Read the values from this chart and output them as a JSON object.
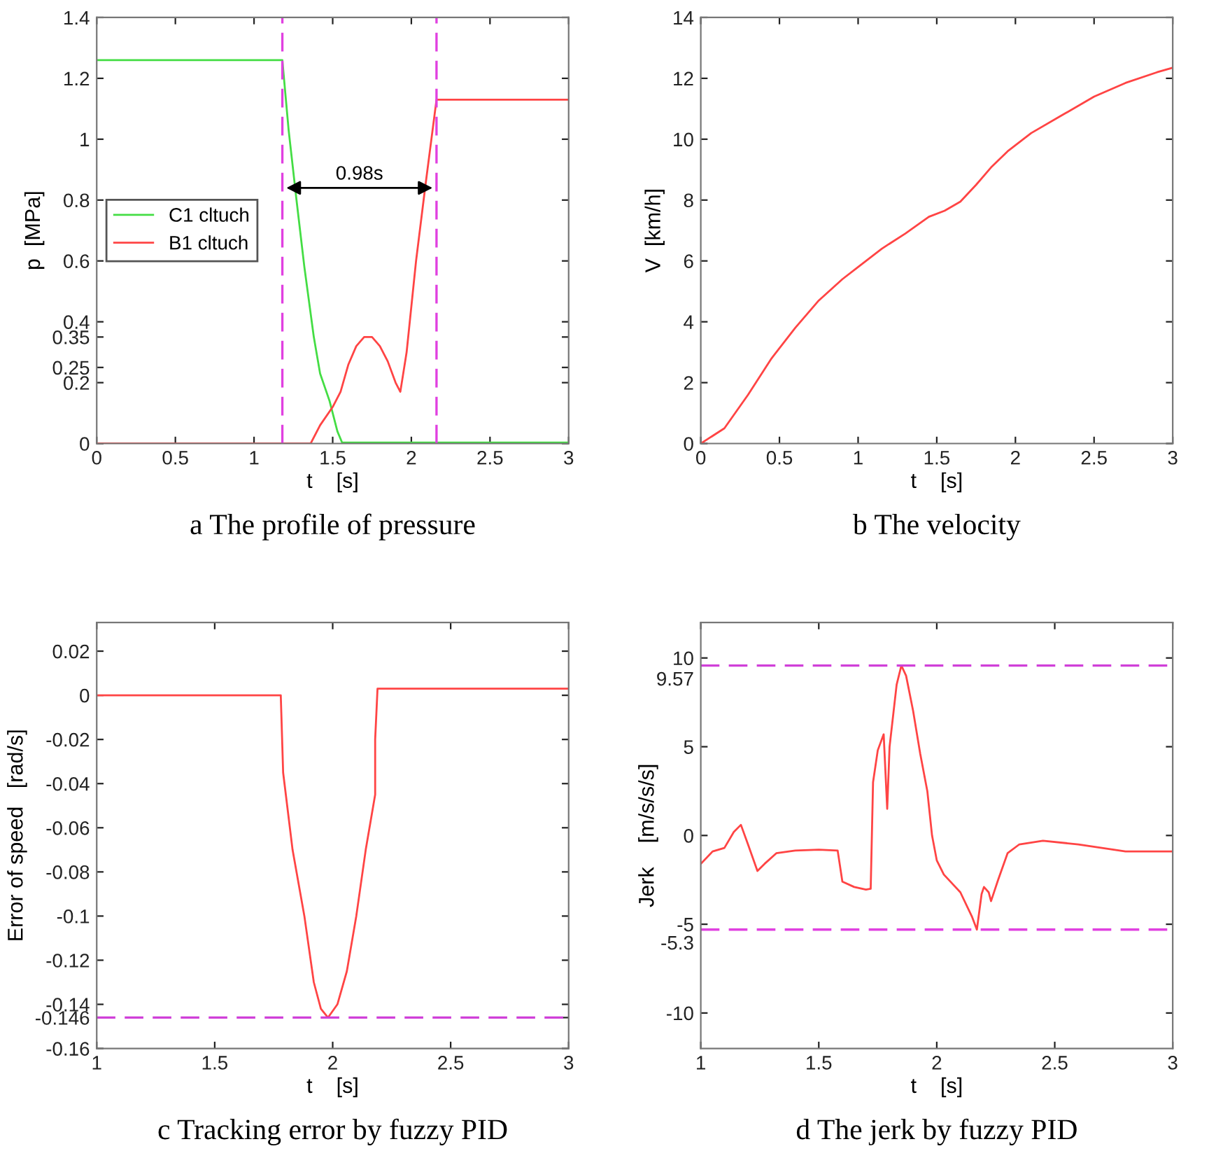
{
  "chart_data": [
    {
      "type": "line",
      "title": "a The profile of pressure",
      "xlabel": "t    [s]",
      "ylabel": "p  [MPa]",
      "xlim": [
        0,
        3
      ],
      "xticks": [
        0,
        0.5,
        1,
        1.5,
        2,
        2.5,
        3
      ],
      "ylim": [
        0,
        1.4
      ],
      "yticks": [
        0,
        0.2,
        0.25,
        0.35,
        0.4,
        0.6,
        0.8,
        1,
        1.2,
        1.4
      ],
      "legend": "left",
      "grid": false,
      "series": [
        {
          "name": "C1 cltuch",
          "color": "#44dd44",
          "x": [
            0,
            1.18,
            1.22,
            1.27,
            1.32,
            1.38,
            1.42,
            1.48,
            1.53,
            1.56,
            3
          ],
          "values": [
            1.26,
            1.26,
            1.03,
            0.8,
            0.58,
            0.35,
            0.23,
            0.14,
            0.04,
            0.003,
            0.003
          ]
        },
        {
          "name": "B1 cltuch",
          "color": "#ff4444",
          "x": [
            0,
            1.36,
            1.42,
            1.5,
            1.55,
            1.6,
            1.65,
            1.7,
            1.75,
            1.8,
            1.85,
            1.9,
            1.93,
            1.97,
            2.03,
            2.09,
            2.16,
            3
          ],
          "values": [
            0,
            0,
            0.06,
            0.12,
            0.17,
            0.26,
            0.32,
            0.35,
            0.35,
            0.32,
            0.27,
            0.2,
            0.17,
            0.3,
            0.6,
            0.85,
            1.13,
            1.13
          ]
        }
      ],
      "ref_lines": [
        {
          "axis": "x",
          "value": 1.18,
          "color": "#e040e0",
          "line_style": "dashed"
        },
        {
          "axis": "x",
          "value": 2.16,
          "color": "#e040e0",
          "line_style": "dashed"
        }
      ],
      "annotations": [
        "0.98s"
      ]
    },
    {
      "type": "line",
      "title": "b The velocity",
      "xlabel": "t    [s]",
      "ylabel": "V  [km/h]",
      "xlim": [
        0,
        3
      ],
      "xticks": [
        0,
        0.5,
        1,
        1.5,
        2,
        2.5,
        3
      ],
      "ylim": [
        0,
        14
      ],
      "yticks": [
        0,
        2,
        4,
        6,
        8,
        10,
        12,
        14
      ],
      "grid": false,
      "series": [
        {
          "color": "#ff4444",
          "x": [
            0,
            0.15,
            0.3,
            0.45,
            0.6,
            0.75,
            0.9,
            1.0,
            1.15,
            1.3,
            1.45,
            1.55,
            1.65,
            1.75,
            1.85,
            1.95,
            2.1,
            2.3,
            2.5,
            2.7,
            2.9,
            3.0
          ],
          "values": [
            0,
            0.5,
            1.6,
            2.8,
            3.8,
            4.7,
            5.4,
            5.8,
            6.4,
            6.9,
            7.45,
            7.65,
            7.95,
            8.5,
            9.1,
            9.6,
            10.2,
            10.8,
            11.4,
            11.85,
            12.2,
            12.35
          ]
        }
      ]
    },
    {
      "type": "line",
      "title": "c Tracking error by fuzzy PID",
      "xlabel": "t    [s]",
      "ylabel": "Error of speed   [rad/s]",
      "xlim": [
        1,
        3
      ],
      "xticks": [
        1,
        1.5,
        2,
        2.5,
        3
      ],
      "ylim": [
        -0.16,
        0.033
      ],
      "yticks": [
        -0.16,
        -0.146,
        -0.14,
        -0.12,
        -0.1,
        -0.08,
        -0.06,
        -0.04,
        -0.02,
        0,
        0.02
      ],
      "grid": false,
      "series": [
        {
          "color": "#ff4444",
          "x": [
            1,
            1.78,
            1.79,
            1.83,
            1.88,
            1.92,
            1.95,
            1.98,
            2.02,
            2.06,
            2.1,
            2.14,
            2.18,
            2.18,
            2.19,
            3
          ],
          "values": [
            0,
            0,
            -0.035,
            -0.07,
            -0.1,
            -0.13,
            -0.142,
            -0.146,
            -0.14,
            -0.125,
            -0.1,
            -0.07,
            -0.045,
            -0.02,
            0.003,
            0.003
          ]
        }
      ],
      "ref_lines": [
        {
          "axis": "y",
          "value": -0.146,
          "color": "#d040d8",
          "line_style": "dashed"
        }
      ]
    },
    {
      "type": "line",
      "title": "d The jerk by fuzzy PID",
      "xlabel": "t    [s]",
      "ylabel": "Jerk    [m/s/s/s]",
      "xlim": [
        1,
        3
      ],
      "xticks": [
        1,
        1.5,
        2,
        2.5,
        3
      ],
      "ylim": [
        -12,
        12
      ],
      "yticks": [
        -10,
        -5,
        0,
        5,
        10
      ],
      "grid": false,
      "series": [
        {
          "color": "#ff4444",
          "x": [
            1,
            1.05,
            1.1,
            1.14,
            1.17,
            1.2,
            1.24,
            1.27,
            1.32,
            1.4,
            1.5,
            1.58,
            1.6,
            1.65,
            1.7,
            1.72,
            1.73,
            1.75,
            1.775,
            1.79,
            1.8,
            1.83,
            1.85,
            1.87,
            1.9,
            1.93,
            1.96,
            1.98,
            2.0,
            2.03,
            2.1,
            2.15,
            2.17,
            2.19,
            2.2,
            2.22,
            2.23,
            2.26,
            2.3,
            2.35,
            2.45,
            2.6,
            2.8,
            3
          ],
          "values": [
            -1.6,
            -0.9,
            -0.7,
            0.2,
            0.6,
            -0.5,
            -2.0,
            -1.6,
            -1.0,
            -0.85,
            -0.8,
            -0.85,
            -2.6,
            -2.9,
            -3.05,
            -3.0,
            3.0,
            4.8,
            5.7,
            1.5,
            5.0,
            8.5,
            9.57,
            9.0,
            7.0,
            4.6,
            2.5,
            0.0,
            -1.4,
            -2.2,
            -3.2,
            -4.6,
            -5.3,
            -3.3,
            -2.9,
            -3.2,
            -3.7,
            -2.5,
            -1.0,
            -0.5,
            -0.3,
            -0.5,
            -0.9,
            -0.9
          ]
        }
      ],
      "ref_lines": [
        {
          "axis": "y",
          "value": 9.57,
          "label": "9.57",
          "color": "#d040d8",
          "line_style": "dashed"
        },
        {
          "axis": "y",
          "value": -5.3,
          "label": "-5.3",
          "color": "#e040e0",
          "line_style": "dashed"
        }
      ]
    }
  ]
}
